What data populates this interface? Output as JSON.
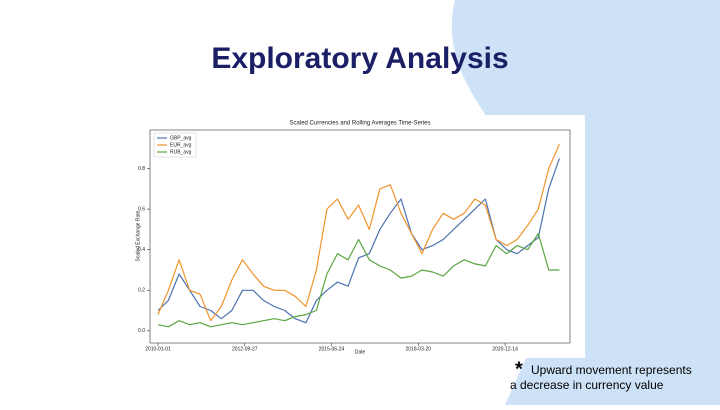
{
  "slide": {
    "title": "Exploratory Analysis",
    "note_mark": "*",
    "note_lines": [
      "Upward movement represents",
      "a decrease in currency value"
    ]
  },
  "chart_data": {
    "type": "line",
    "title": "Scaled Currencies and Rolling Averages Time-Series",
    "x_label": "Date",
    "y_label": "Scaled Exchange Rate",
    "x": [
      "2010-01-01",
      "2010-05-01",
      "2010-09-01",
      "2011-01-01",
      "2011-05-01",
      "2011-09-01",
      "2012-01-01",
      "2012-05-01",
      "2012-09-01",
      "2013-01-01",
      "2013-05-01",
      "2013-09-01",
      "2014-01-01",
      "2014-05-01",
      "2014-09-01",
      "2015-01-01",
      "2015-05-01",
      "2015-09-01",
      "2016-01-01",
      "2016-05-01",
      "2016-09-01",
      "2017-01-01",
      "2017-05-01",
      "2017-09-01",
      "2018-01-01",
      "2018-05-01",
      "2018-09-01",
      "2019-01-01",
      "2019-05-01",
      "2019-09-01",
      "2020-01-01",
      "2020-05-01",
      "2020-09-01",
      "2021-01-01",
      "2021-05-01",
      "2021-09-01",
      "2022-01-01",
      "2022-05-01",
      "2022-09-01"
    ],
    "series": [
      {
        "name": "GBP_avg",
        "color": "#4c72b0",
        "values": [
          0.1,
          0.15,
          0.28,
          0.2,
          0.12,
          0.1,
          0.06,
          0.1,
          0.2,
          0.2,
          0.15,
          0.12,
          0.1,
          0.06,
          0.04,
          0.15,
          0.2,
          0.24,
          0.22,
          0.36,
          0.38,
          0.5,
          0.58,
          0.65,
          0.48,
          0.4,
          0.42,
          0.45,
          0.5,
          0.55,
          0.6,
          0.65,
          0.45,
          0.4,
          0.38,
          0.42,
          0.46,
          0.7,
          0.85
        ]
      },
      {
        "name": "EUR_avg",
        "color": "#f0932b",
        "values": [
          0.08,
          0.2,
          0.35,
          0.2,
          0.18,
          0.05,
          0.12,
          0.25,
          0.35,
          0.28,
          0.22,
          0.2,
          0.2,
          0.17,
          0.12,
          0.3,
          0.6,
          0.65,
          0.55,
          0.62,
          0.5,
          0.7,
          0.72,
          0.58,
          0.48,
          0.38,
          0.5,
          0.58,
          0.55,
          0.58,
          0.65,
          0.62,
          0.45,
          0.42,
          0.45,
          0.52,
          0.6,
          0.8,
          0.92
        ]
      },
      {
        "name": "RUB_avg",
        "color": "#5aa640",
        "values": [
          0.03,
          0.02,
          0.05,
          0.03,
          0.04,
          0.02,
          0.03,
          0.04,
          0.03,
          0.04,
          0.05,
          0.06,
          0.05,
          0.07,
          0.08,
          0.1,
          0.28,
          0.38,
          0.35,
          0.45,
          0.35,
          0.32,
          0.3,
          0.26,
          0.27,
          0.3,
          0.29,
          0.27,
          0.32,
          0.35,
          0.33,
          0.32,
          0.42,
          0.38,
          0.42,
          0.4,
          0.48,
          0.3,
          0.3
        ]
      }
    ],
    "xlim": [
      "2009-10-01",
      "2023-01-01"
    ],
    "xticks": [
      "2010-01-01",
      "2012-09-27",
      "2015-06-24",
      "2018-03-20",
      "2020-12-14"
    ],
    "ylim": [
      -0.06,
      0.99
    ],
    "yticks": [
      {
        "value": 0,
        "label": "0.0"
      },
      0.2,
      0.4,
      0.6,
      0.8
    ],
    "legend": "upper-left",
    "grid": false
  }
}
